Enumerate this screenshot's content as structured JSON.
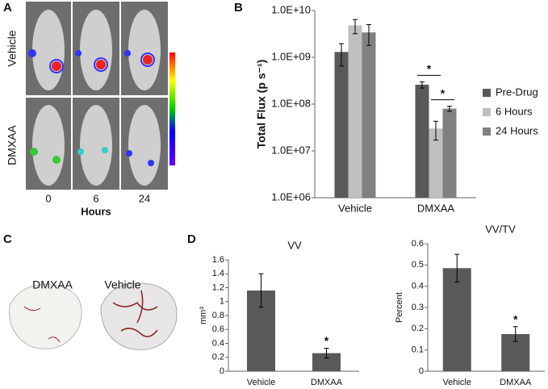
{
  "panel_labels": [
    "A",
    "B",
    "C",
    "D"
  ],
  "panel_a": {
    "rows": [
      "Vehicle",
      "DMXAA"
    ],
    "columns": [
      "0",
      "6",
      "24"
    ],
    "x_label": "Hours"
  },
  "panel_c": {
    "labels": [
      "DMXAA",
      "Vehicle"
    ]
  },
  "chart_data": [
    {
      "type": "bar",
      "log_scale": true,
      "y_label": "Total Flux (p s⁻¹)",
      "categories": [
        "Vehicle",
        "DMXAA"
      ],
      "series": [
        {
          "name": "Pre-Drug",
          "color": "#595959",
          "values": [
            1300000000,
            260000000
          ],
          "errors": [
            650000000,
            40000000
          ]
        },
        {
          "name": "6 Hours",
          "color": "#bfbfbf",
          "values": [
            4800000000,
            30000000
          ],
          "errors": [
            1600000000,
            13000000
          ]
        },
        {
          "name": "24 Hours",
          "color": "#808080",
          "values": [
            3400000000,
            80000000
          ],
          "errors": [
            1600000000,
            10000000
          ]
        }
      ],
      "ylim": [
        1000000,
        10000000000
      ],
      "yticks": [
        {
          "value": 1000000,
          "label": "1.0E+06"
        },
        {
          "value": 10000000,
          "label": "1.0E+07"
        },
        {
          "value": 100000000,
          "label": "1.0E+08"
        },
        {
          "value": 1000000000,
          "label": "1.0E+09"
        },
        {
          "value": 10000000000,
          "label": "1.0E+10"
        }
      ],
      "legend": "right",
      "annotations": [
        "*",
        "*"
      ]
    },
    {
      "type": "bar",
      "title": "VV",
      "y_label": "mm³",
      "categories": [
        "Vehicle",
        "DMXAA"
      ],
      "values": [
        1.16,
        0.26
      ],
      "errors": [
        0.24,
        0.07
      ],
      "color": "#595959",
      "ylim": [
        0,
        1.6
      ],
      "yticks": [
        0,
        0.2,
        0.4,
        0.6,
        0.8,
        1,
        1.2,
        1.4,
        1.6
      ],
      "annotations": [
        "*"
      ]
    },
    {
      "type": "bar",
      "title": "VV/TV",
      "y_label": "Percent",
      "categories": [
        "Vehicle",
        "DMXAA"
      ],
      "values": [
        0.485,
        0.175
      ],
      "errors": [
        0.065,
        0.035
      ],
      "color": "#595959",
      "ylim": [
        0,
        0.6
      ],
      "yticks": [
        0,
        0.1,
        0.2,
        0.3,
        0.4,
        0.5,
        0.6
      ],
      "annotations": [
        "*"
      ]
    }
  ]
}
